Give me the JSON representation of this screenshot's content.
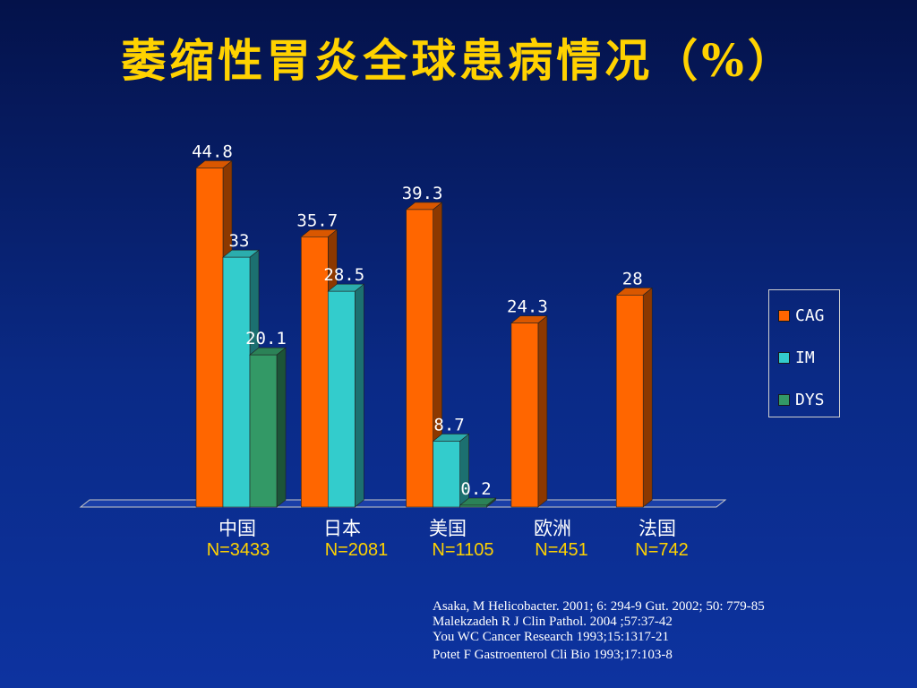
{
  "title": "萎缩性胃炎全球患病情况（%）",
  "chart_data": {
    "type": "bar",
    "categories": [
      "中国",
      "日本",
      "美国",
      "欧洲",
      "法国"
    ],
    "sample_sizes": [
      "N=3433",
      "N=2081",
      "N=1105",
      "N=451",
      "N=742"
    ],
    "series": [
      {
        "name": "CAG",
        "color": "#ff6600",
        "values": [
          44.8,
          35.7,
          39.3,
          24.3,
          28
        ],
        "labels": [
          "44.8",
          "35.7",
          "39.3",
          "24.3",
          "28"
        ]
      },
      {
        "name": "IM",
        "color": "#33cccc",
        "values": [
          33,
          28.5,
          8.7,
          null,
          null
        ],
        "labels": [
          "33",
          "28.5",
          "8.7",
          "",
          ""
        ]
      },
      {
        "name": "DYS",
        "color": "#339966",
        "values": [
          20.1,
          null,
          0.2,
          null,
          null
        ],
        "labels": [
          "20.1",
          "",
          "0.2",
          "",
          ""
        ]
      }
    ],
    "ylim": [
      0,
      50
    ],
    "grid": false,
    "legend_position": "right",
    "style": "3d"
  },
  "references": [
    "Asaka, M  Helicobacter. 2001; 6: 294-9   Gut. 2002; 50: 779-85",
    "Malekzadeh R J Clin Pathol. 2004 ;57:37-42",
    "You WC Cancer Research 1993;15:1317-21",
    "Potet F Gastroenterol Cli Bio 1993;17:103-8"
  ]
}
